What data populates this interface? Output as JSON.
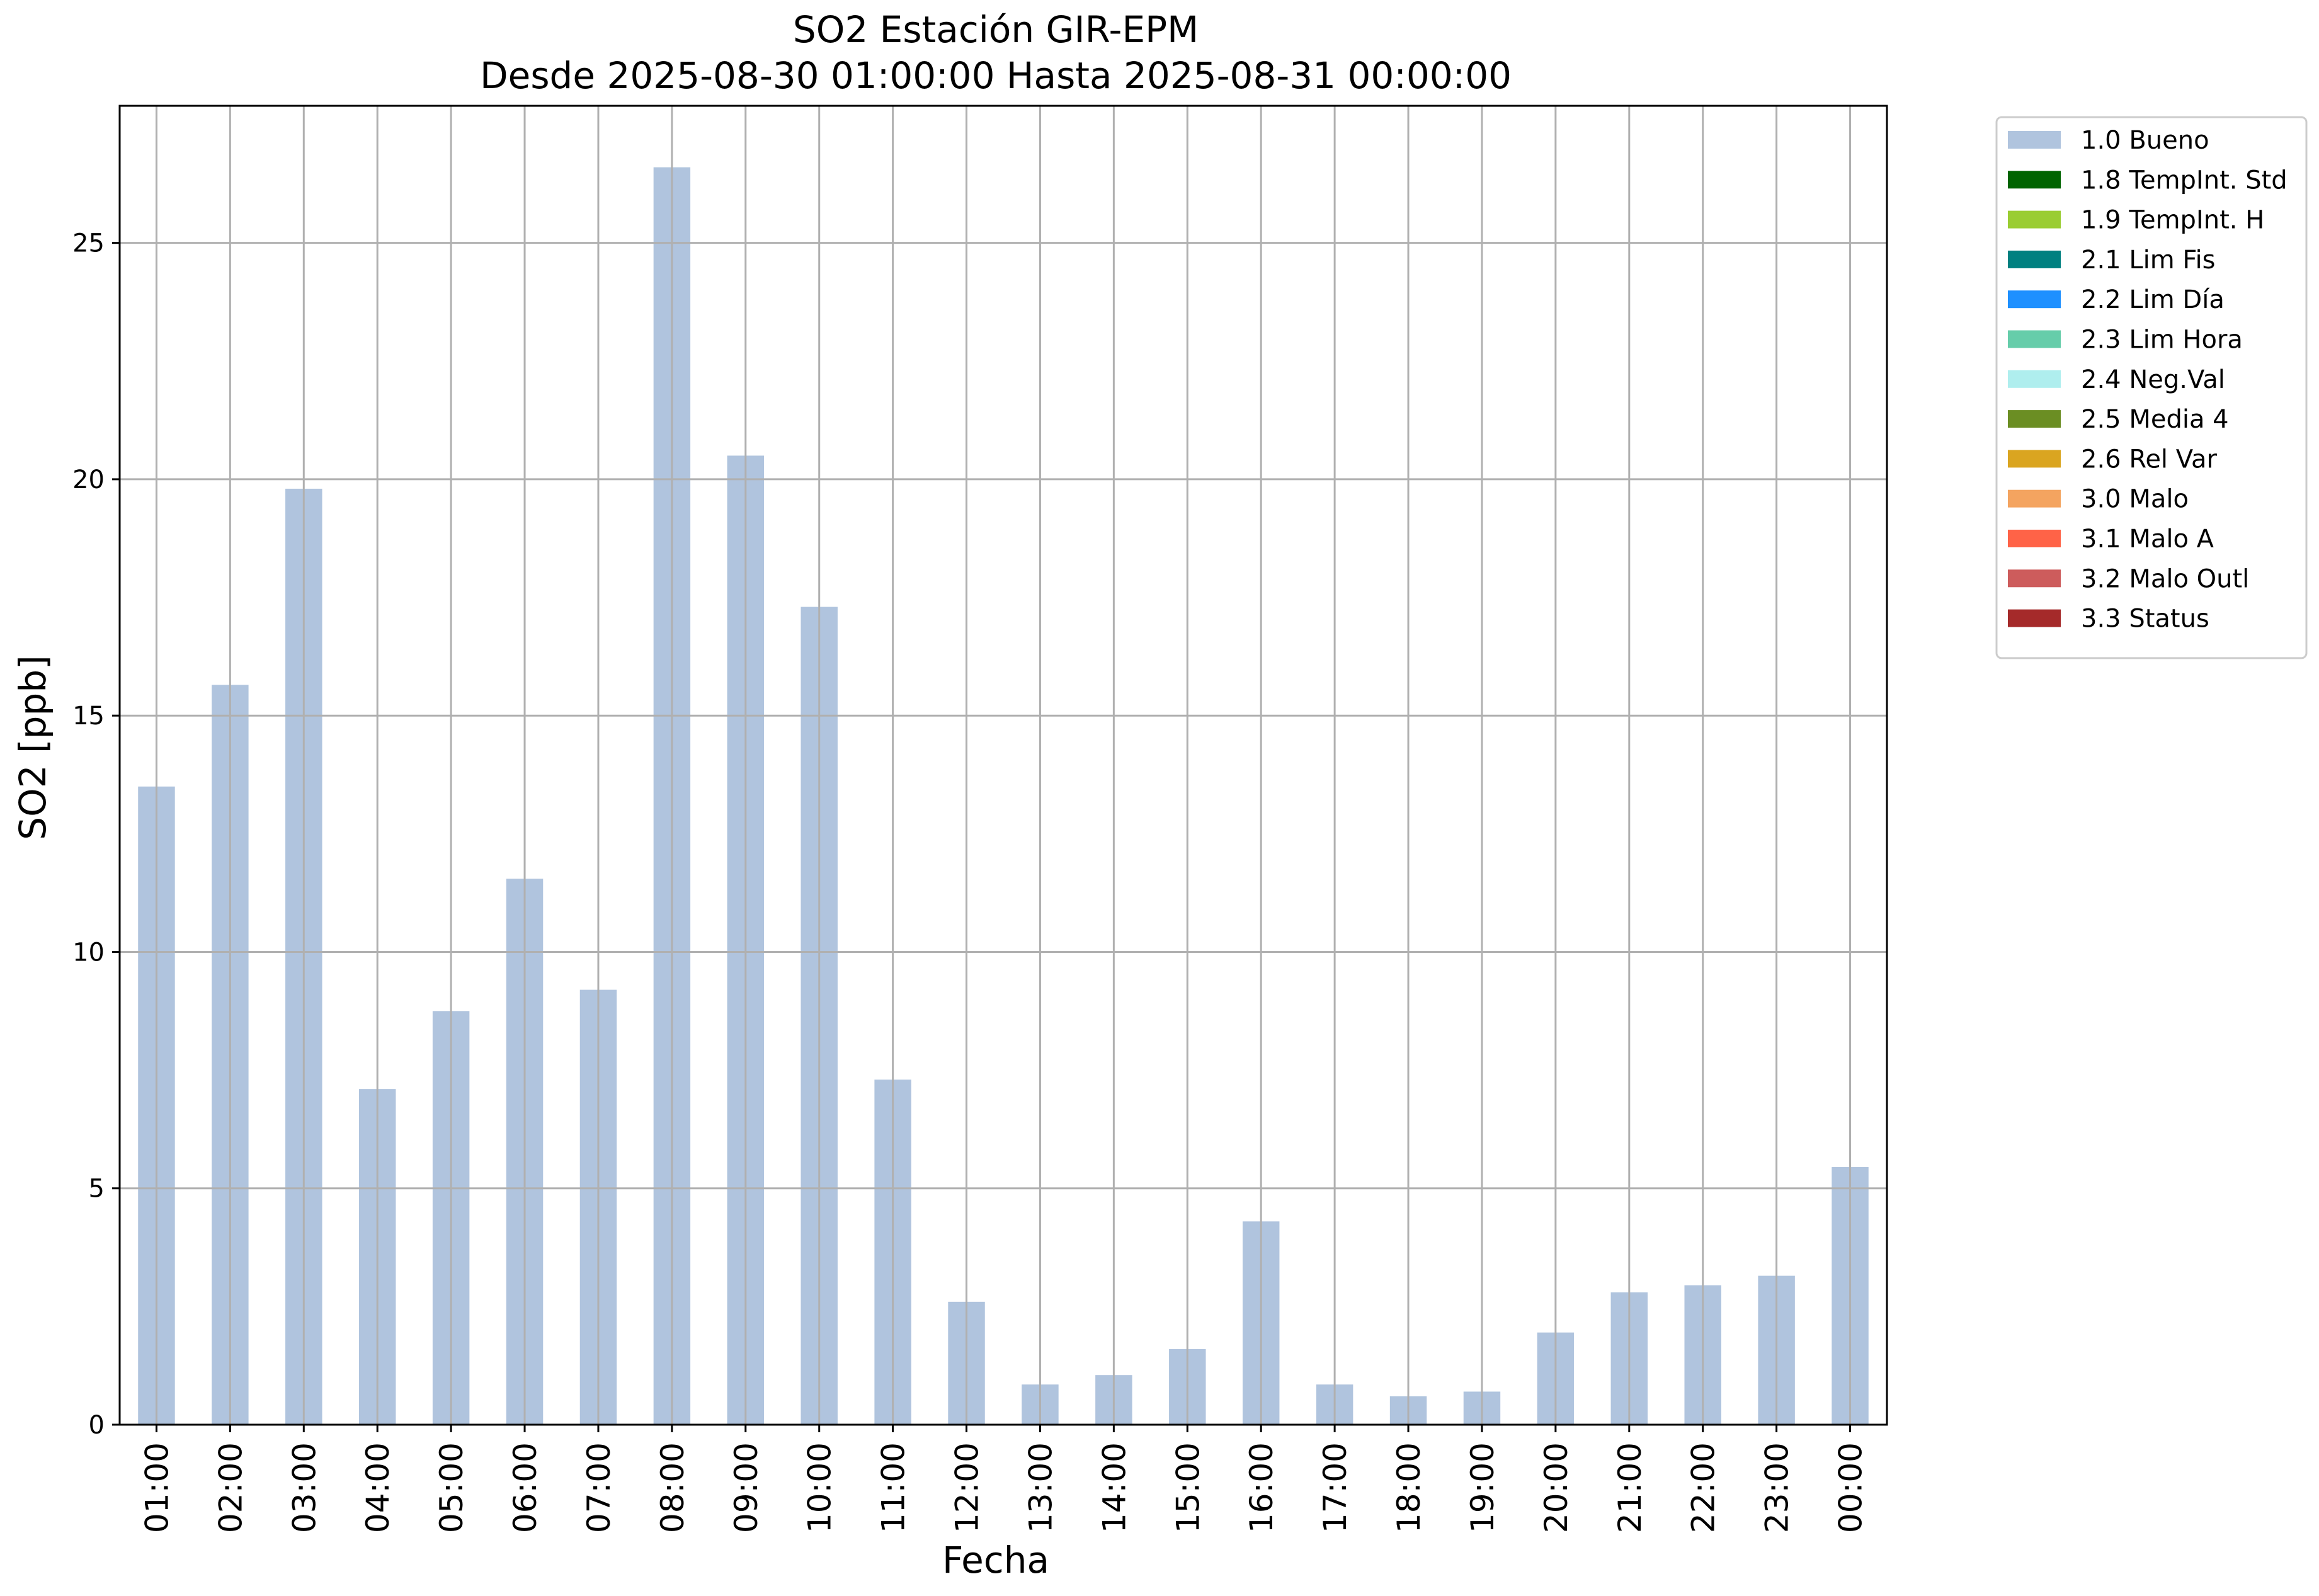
{
  "chart_data": {
    "type": "bar",
    "title": "SO2 Estación GIR-EPM",
    "subtitle": "Desde 2025-08-30 01:00:00 Hasta 2025-08-31 00:00:00",
    "xlabel": "Fecha",
    "ylabel": "SO2 [ppb]",
    "ylim": [
      0,
      27.9
    ],
    "yticks": [
      0,
      5,
      10,
      15,
      20,
      25
    ],
    "grid": true,
    "legend_position": "outside top-right",
    "categories": [
      "01:00",
      "02:00",
      "03:00",
      "04:00",
      "05:00",
      "06:00",
      "07:00",
      "08:00",
      "09:00",
      "10:00",
      "11:00",
      "12:00",
      "13:00",
      "14:00",
      "15:00",
      "16:00",
      "17:00",
      "18:00",
      "19:00",
      "20:00",
      "21:00",
      "22:00",
      "23:00",
      "00:00"
    ],
    "series": [
      {
        "name": "1.0 Bueno",
        "color": "#b0c4de",
        "values": [
          13.5,
          15.65,
          19.8,
          7.1,
          8.75,
          11.55,
          9.2,
          26.6,
          20.5,
          17.3,
          7.3,
          2.6,
          0.85,
          1.05,
          1.6,
          4.3,
          0.85,
          0.6,
          0.7,
          1.95,
          2.8,
          2.95,
          3.15,
          5.45
        ]
      }
    ],
    "legend": [
      {
        "label": "1.0 Bueno",
        "color": "#b0c4de"
      },
      {
        "label": "1.8 TempInt. Std",
        "color": "#006400"
      },
      {
        "label": "1.9 TempInt. H",
        "color": "#9acd32"
      },
      {
        "label": "2.1 Lim Fis",
        "color": "#008080"
      },
      {
        "label": "2.2 Lim Día",
        "color": "#1e90ff"
      },
      {
        "label": "2.3 Lim Hora",
        "color": "#66cdaa"
      },
      {
        "label": "2.4 Neg.Val",
        "color": "#afeeee"
      },
      {
        "label": "2.5 Media 4",
        "color": "#6b8e23"
      },
      {
        "label": "2.6 Rel Var",
        "color": "#daa520"
      },
      {
        "label": "3.0 Malo",
        "color": "#f4a460"
      },
      {
        "label": "3.1 Malo A",
        "color": "#ff6347"
      },
      {
        "label": "3.2 Malo Outl",
        "color": "#cd5c5c"
      },
      {
        "label": "3.3 Status",
        "color": "#a52a2a"
      }
    ]
  }
}
